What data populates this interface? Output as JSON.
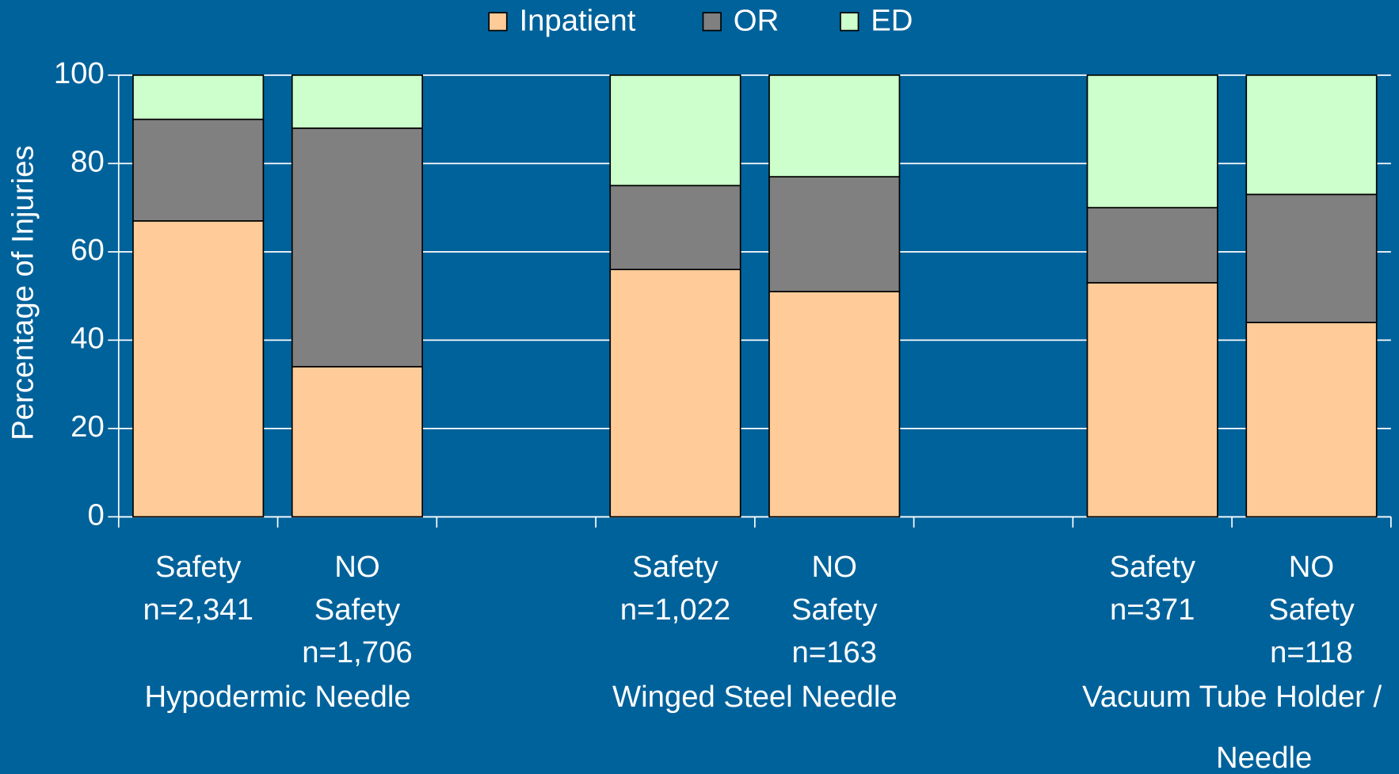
{
  "chart_data": {
    "type": "stacked_bar",
    "y_label": "Percentage of Injuries",
    "categories": [
      [
        "Safety",
        "n=2,341"
      ],
      [
        "NO",
        "Safety",
        "n=1,706"
      ],
      null,
      [
        "Safety",
        "n=1,022"
      ],
      [
        "NO",
        "Safety",
        "n=163"
      ],
      null,
      [
        "Safety",
        "n=371"
      ],
      [
        "NO",
        "Safety",
        "n=118"
      ]
    ],
    "groups": [
      [
        "Hypodermic Needle"
      ],
      [
        "Winged Steel Needle"
      ],
      [
        "Vacuum Tube Holder /",
        "Needle"
      ]
    ],
    "series": [
      {
        "name": "Inpatient",
        "color": "#ffcc99",
        "values": [
          67,
          34,
          null,
          56,
          51,
          null,
          53,
          44
        ]
      },
      {
        "name": "OR",
        "color": "#808080",
        "values": [
          23,
          54,
          null,
          19,
          26,
          null,
          17,
          29
        ]
      },
      {
        "name": "ED",
        "color": "#ccffcc",
        "values": [
          10,
          12,
          null,
          25,
          23,
          null,
          30,
          27
        ]
      }
    ],
    "ylim": [
      0,
      100
    ],
    "yticks": [
      0,
      20,
      40,
      60,
      80,
      100
    ],
    "grid": true
  }
}
